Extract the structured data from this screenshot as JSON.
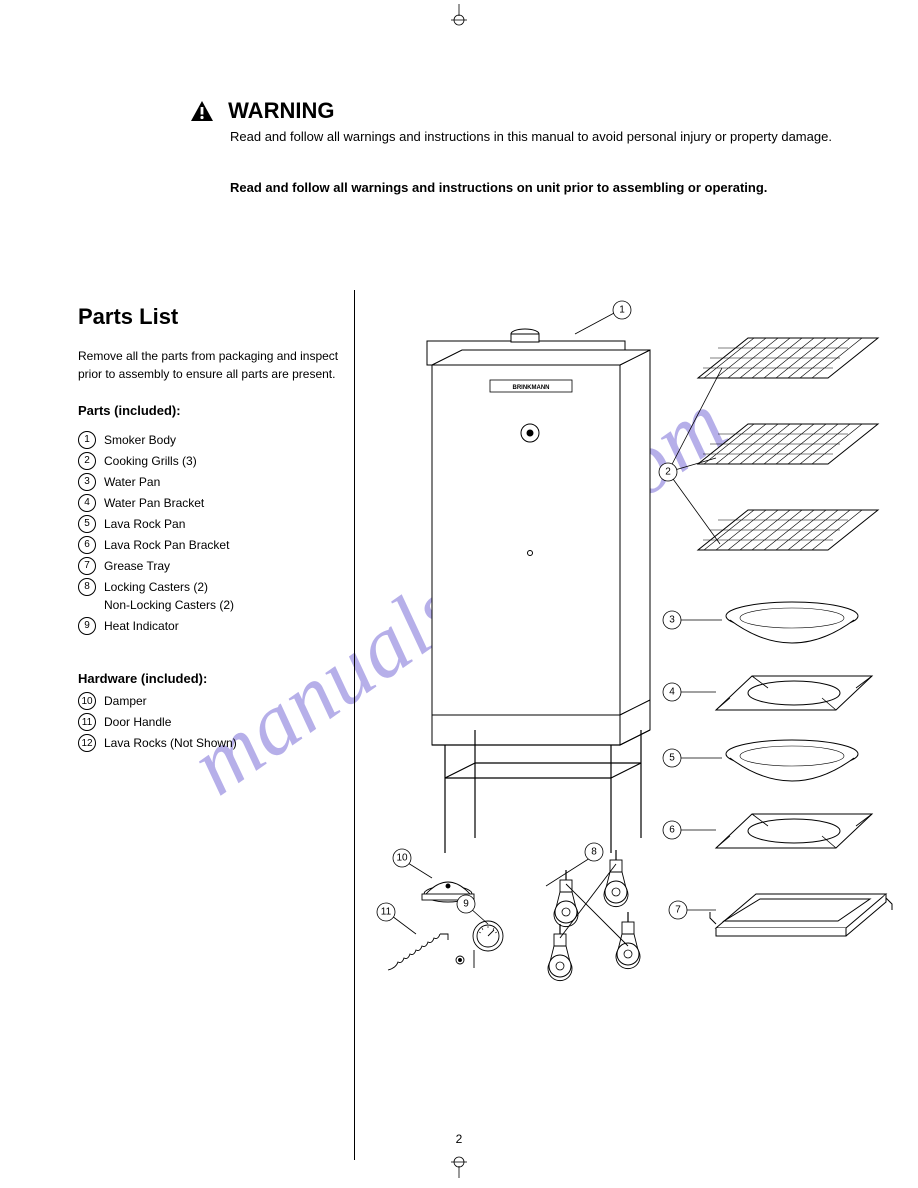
{
  "watermark": "manualshive.com",
  "header": {
    "warning_label": "WARNING",
    "subtitle_line1": "Read and follow all warnings and instructions in this manual to avoid personal injury or property damage.",
    "subtitle_line2": "Read and follow all warnings and instructions on unit prior to assembling or operating."
  },
  "left": {
    "heading": "Parts List",
    "intro": "Remove all the parts from packaging and inspect prior to assembly to ensure all parts are present.",
    "parts_heading": "Parts (included):",
    "parts": [
      {
        "n": "1",
        "label": "Smoker Body"
      },
      {
        "n": "2",
        "label": "Cooking Grills (3)"
      },
      {
        "n": "3",
        "label": "Water Pan"
      },
      {
        "n": "4",
        "label": "Water Pan Bracket"
      },
      {
        "n": "5",
        "label": "Lava Rock Pan"
      },
      {
        "n": "6",
        "label": "Lava Rock Pan Bracket"
      },
      {
        "n": "7",
        "label": "Grease Tray"
      },
      {
        "n": "8",
        "label": "Locking Casters (2)\nNon-Locking Casters (2)"
      },
      {
        "n": "9",
        "label": "Heat Indicator"
      }
    ],
    "hw_heading": "Hardware (included):",
    "hw": [
      {
        "n": "10",
        "label": "Damper"
      },
      {
        "n": "11",
        "label": "Door Handle"
      },
      {
        "n": "12",
        "label": "Lava Rocks (Not Shown)"
      }
    ]
  },
  "callouts": {
    "c1": "1",
    "c2": "2",
    "c3": "3",
    "c4": "4",
    "c5": "5",
    "c6": "6",
    "c7": "7",
    "c8": "8",
    "c9": "9",
    "c10": "10",
    "c11": "11"
  },
  "page_number": "2",
  "colors": {
    "watermark": "#7c6fd8"
  }
}
